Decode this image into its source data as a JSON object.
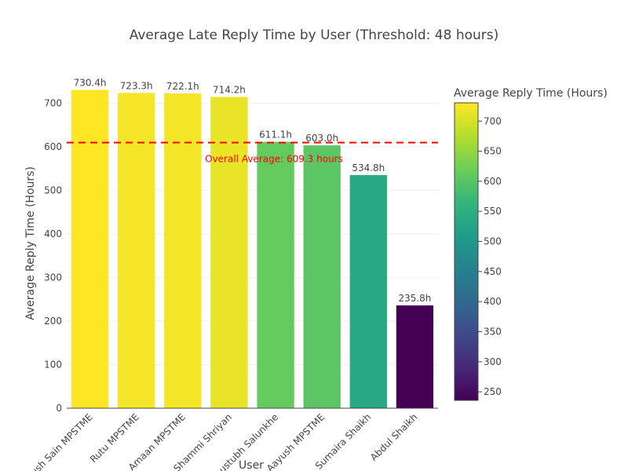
{
  "chart_data": {
    "type": "bar",
    "title": "Average Late Reply Time by User (Threshold: 48 hours)",
    "xlabel": "User",
    "ylabel": "Average Reply Time (Hours)",
    "categories": [
      "Jush Sain MPSTME",
      "Rutu MPSTME",
      "Amaan MPSTME",
      "Shammi Shriyan",
      "Kaustubh Salunkhe",
      "Aayush MPSTME",
      "Sumaira  Shaikh",
      "Abdul Shaikh"
    ],
    "values": [
      730.4,
      723.3,
      722.1,
      714.2,
      611.1,
      603.0,
      534.8,
      235.8
    ],
    "data_labels": [
      "730.4h",
      "723.3h",
      "722.1h",
      "714.2h",
      "611.1h",
      "603.0h",
      "534.8h",
      "235.8h"
    ],
    "ylim": [
      0,
      760
    ],
    "yticks": [
      0,
      100,
      200,
      300,
      400,
      500,
      600,
      700
    ],
    "grid": true,
    "reference_line": {
      "value": 609.3,
      "label": "Overall Average: 609.3 hours",
      "color": "#ff0000",
      "style": "dashed"
    },
    "colorbar": {
      "title": "Average Reply Time (Hours)",
      "min": 235.8,
      "max": 730.4,
      "ticks": [
        250,
        300,
        350,
        400,
        450,
        500,
        550,
        600,
        650,
        700
      ],
      "colorscale": "viridis",
      "placement": "right"
    }
  }
}
